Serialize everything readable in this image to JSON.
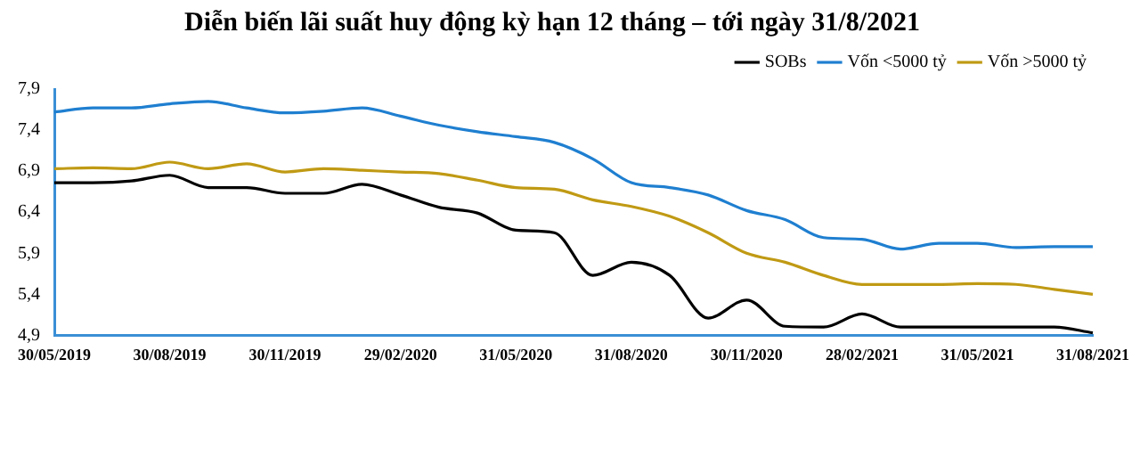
{
  "chart_data": {
    "type": "line",
    "title": "Diễn biến lãi suất huy động kỳ hạn 12 tháng – tới ngày 31/8/2021",
    "categories": [
      "30/05/2019",
      null,
      null,
      "30/08/2019",
      null,
      null,
      "30/11/2019",
      null,
      null,
      "29/02/2020",
      null,
      null,
      "31/05/2020",
      null,
      null,
      "31/08/2020",
      null,
      null,
      "30/11/2020",
      null,
      null,
      "28/02/2021",
      null,
      null,
      "31/05/2021",
      null,
      null,
      "31/08/2021"
    ],
    "series": [
      {
        "name": "SOBs",
        "color": "#000000",
        "values": [
          6.76,
          6.76,
          6.78,
          6.85,
          6.7,
          6.7,
          6.63,
          6.63,
          6.74,
          6.61,
          6.46,
          6.39,
          6.18,
          6.15,
          5.63,
          5.79,
          5.63,
          5.11,
          5.33,
          5.01,
          5.0,
          5.16,
          5.0,
          5.0,
          5.0,
          5.0,
          5.0,
          4.93
        ]
      },
      {
        "name": "Vốn <5000 tỷ",
        "color": "#1f7fd0",
        "values": [
          7.62,
          7.67,
          7.67,
          7.72,
          7.75,
          7.67,
          7.61,
          7.63,
          7.67,
          7.57,
          7.46,
          7.38,
          7.32,
          7.25,
          7.05,
          6.76,
          6.7,
          6.61,
          6.42,
          6.31,
          6.09,
          6.07,
          5.95,
          6.02,
          6.02,
          5.97,
          5.98,
          5.98
        ]
      },
      {
        "name": "Vốn >5000 tỷ",
        "color": "#c09a14",
        "values": [
          6.93,
          6.94,
          6.93,
          7.01,
          6.93,
          6.99,
          6.89,
          6.93,
          6.91,
          6.89,
          6.87,
          6.79,
          6.7,
          6.68,
          6.55,
          6.47,
          6.35,
          6.15,
          5.9,
          5.79,
          5.63,
          5.52,
          5.52,
          5.52,
          5.53,
          5.52,
          5.46,
          5.4
        ]
      }
    ],
    "ylim": [
      4.9,
      7.9
    ],
    "yticks": [
      {
        "value": 4.9,
        "label": "4,9"
      },
      {
        "value": 5.4,
        "label": "5,4"
      },
      {
        "value": 5.9,
        "label": "5,9"
      },
      {
        "value": 6.4,
        "label": "6,4"
      },
      {
        "value": 6.9,
        "label": "6,9"
      },
      {
        "value": 7.4,
        "label": "7,4"
      },
      {
        "value": 7.9,
        "label": "7,9"
      }
    ],
    "grid": false,
    "legend": "top right",
    "marker": "none",
    "line_style": "solid"
  }
}
